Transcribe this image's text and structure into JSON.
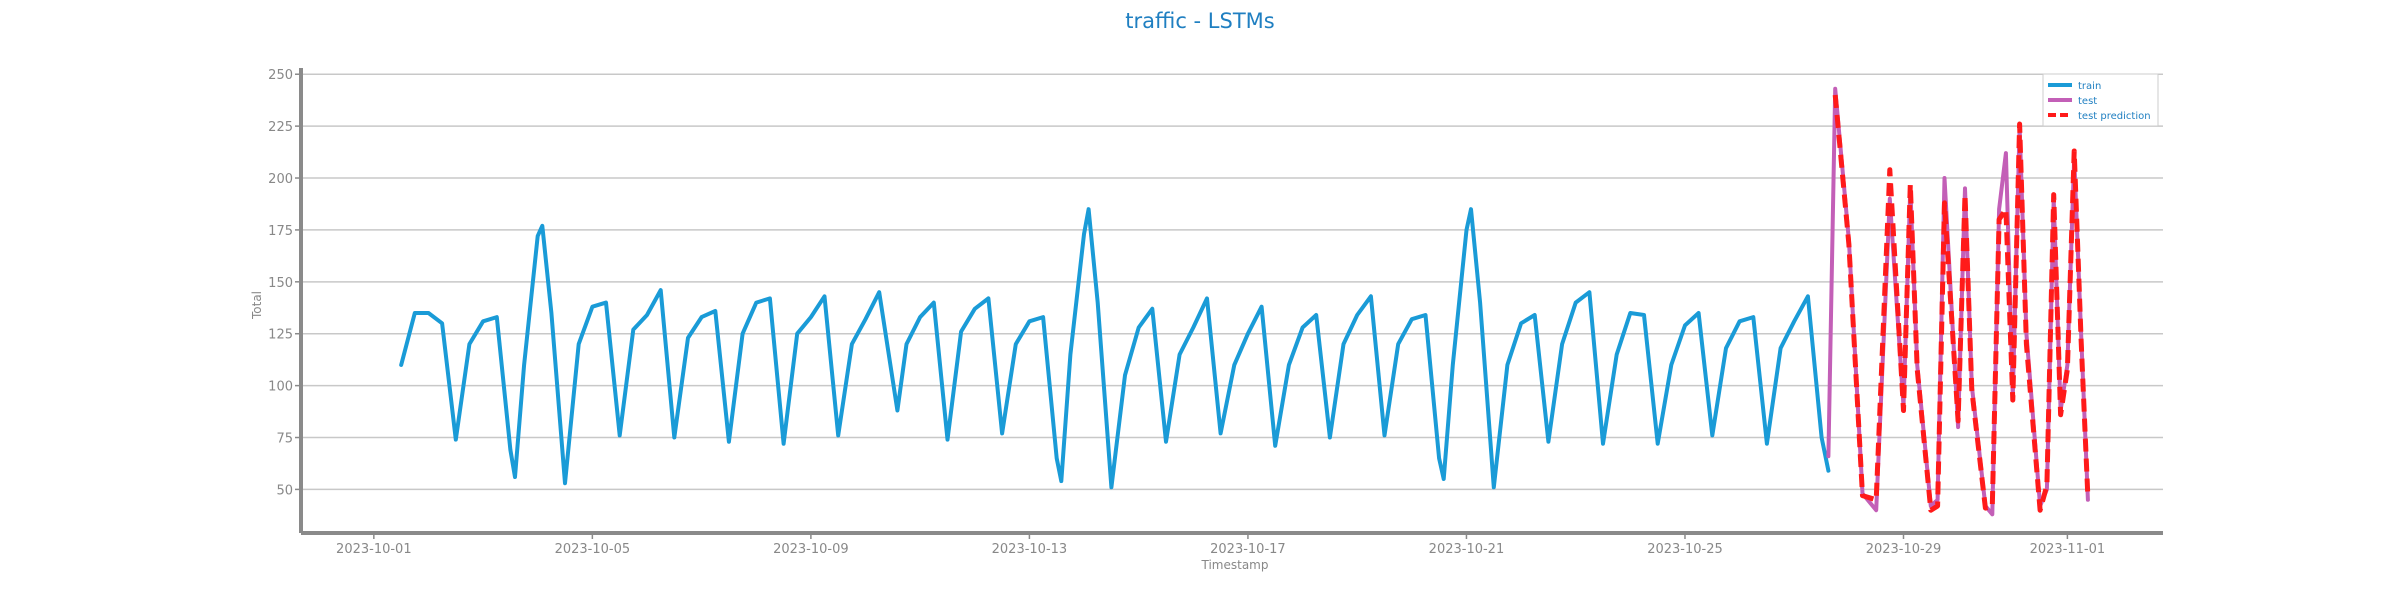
{
  "chart_data": {
    "type": "line",
    "title": "traffic - LSTMs",
    "xlabel": "Timestamp",
    "ylabel": "Total",
    "x_range": [
      "2023-09-29T16:00",
      "2023-11-02T18:00"
    ],
    "ylim": [
      29,
      253
    ],
    "y_ticks": [
      50,
      75,
      100,
      125,
      150,
      175,
      200,
      225,
      250
    ],
    "x_ticks": [
      "2023-10-01",
      "2023-10-05",
      "2023-10-09",
      "2023-10-13",
      "2023-10-17",
      "2023-10-21",
      "2023-10-25",
      "2023-10-29",
      "2023-11-01"
    ],
    "grid": "horizontal",
    "legend_position": "top-right",
    "colors": {
      "train": "#1a9bd7",
      "test": "#c35fb7",
      "test prediction": "#ff1a1a",
      "title": "#1f7fc1",
      "grid": "#c8c8c8",
      "axis": "#8a8a8a"
    },
    "series": [
      {
        "name": "train",
        "style": "solid",
        "points": [
          [
            "2023-10-01T12:00",
            110
          ],
          [
            "2023-10-01T18:00",
            135
          ],
          [
            "2023-10-02T00:00",
            135
          ],
          [
            "2023-10-02T06:00",
            130
          ],
          [
            "2023-10-02T12:00",
            74
          ],
          [
            "2023-10-02T18:00",
            120
          ],
          [
            "2023-10-03T00:00",
            131
          ],
          [
            "2023-10-03T06:00",
            133
          ],
          [
            "2023-10-03T12:00",
            69
          ],
          [
            "2023-10-03T14:00",
            56
          ],
          [
            "2023-10-03T18:00",
            110
          ],
          [
            "2023-10-04T00:00",
            172
          ],
          [
            "2023-10-04T02:00",
            177
          ],
          [
            "2023-10-04T06:00",
            135
          ],
          [
            "2023-10-04T12:00",
            53
          ],
          [
            "2023-10-04T18:00",
            120
          ],
          [
            "2023-10-05T00:00",
            138
          ],
          [
            "2023-10-05T06:00",
            140
          ],
          [
            "2023-10-05T12:00",
            76
          ],
          [
            "2023-10-05T18:00",
            127
          ],
          [
            "2023-10-06T00:00",
            134
          ],
          [
            "2023-10-06T06:00",
            146
          ],
          [
            "2023-10-06T12:00",
            75
          ],
          [
            "2023-10-06T18:00",
            123
          ],
          [
            "2023-10-07T00:00",
            133
          ],
          [
            "2023-10-07T06:00",
            136
          ],
          [
            "2023-10-07T12:00",
            73
          ],
          [
            "2023-10-07T18:00",
            125
          ],
          [
            "2023-10-08T00:00",
            140
          ],
          [
            "2023-10-08T06:00",
            142
          ],
          [
            "2023-10-08T12:00",
            72
          ],
          [
            "2023-10-08T18:00",
            125
          ],
          [
            "2023-10-09T00:00",
            133
          ],
          [
            "2023-10-09T06:00",
            143
          ],
          [
            "2023-10-09T12:00",
            76
          ],
          [
            "2023-10-09T18:00",
            120
          ],
          [
            "2023-10-10T00:00",
            132
          ],
          [
            "2023-10-10T06:00",
            145
          ],
          [
            "2023-10-10T14:00",
            88
          ],
          [
            "2023-10-10T18:00",
            120
          ],
          [
            "2023-10-11T00:00",
            133
          ],
          [
            "2023-10-11T06:00",
            140
          ],
          [
            "2023-10-11T12:00",
            74
          ],
          [
            "2023-10-11T18:00",
            126
          ],
          [
            "2023-10-12T00:00",
            137
          ],
          [
            "2023-10-12T06:00",
            142
          ],
          [
            "2023-10-12T12:00",
            77
          ],
          [
            "2023-10-12T18:00",
            120
          ],
          [
            "2023-10-13T00:00",
            131
          ],
          [
            "2023-10-13T06:00",
            133
          ],
          [
            "2023-10-13T12:00",
            65
          ],
          [
            "2023-10-13T14:00",
            54
          ],
          [
            "2023-10-13T18:00",
            115
          ],
          [
            "2023-10-14T00:00",
            173
          ],
          [
            "2023-10-14T02:00",
            185
          ],
          [
            "2023-10-14T06:00",
            140
          ],
          [
            "2023-10-14T12:00",
            51
          ],
          [
            "2023-10-14T18:00",
            105
          ],
          [
            "2023-10-15T00:00",
            128
          ],
          [
            "2023-10-15T06:00",
            137
          ],
          [
            "2023-10-15T12:00",
            73
          ],
          [
            "2023-10-15T18:00",
            115
          ],
          [
            "2023-10-16T00:00",
            128
          ],
          [
            "2023-10-16T06:00",
            142
          ],
          [
            "2023-10-16T12:00",
            77
          ],
          [
            "2023-10-16T18:00",
            110
          ],
          [
            "2023-10-17T00:00",
            125
          ],
          [
            "2023-10-17T06:00",
            138
          ],
          [
            "2023-10-17T12:00",
            71
          ],
          [
            "2023-10-17T18:00",
            110
          ],
          [
            "2023-10-18T00:00",
            128
          ],
          [
            "2023-10-18T06:00",
            134
          ],
          [
            "2023-10-18T12:00",
            75
          ],
          [
            "2023-10-18T18:00",
            120
          ],
          [
            "2023-10-19T00:00",
            134
          ],
          [
            "2023-10-19T06:00",
            143
          ],
          [
            "2023-10-19T12:00",
            76
          ],
          [
            "2023-10-19T18:00",
            120
          ],
          [
            "2023-10-20T00:00",
            132
          ],
          [
            "2023-10-20T06:00",
            134
          ],
          [
            "2023-10-20T12:00",
            65
          ],
          [
            "2023-10-20T14:00",
            55
          ],
          [
            "2023-10-20T18:00",
            110
          ],
          [
            "2023-10-21T00:00",
            175
          ],
          [
            "2023-10-21T02:00",
            185
          ],
          [
            "2023-10-21T06:00",
            140
          ],
          [
            "2023-10-21T12:00",
            51
          ],
          [
            "2023-10-21T18:00",
            110
          ],
          [
            "2023-10-22T00:00",
            130
          ],
          [
            "2023-10-22T06:00",
            134
          ],
          [
            "2023-10-22T12:00",
            73
          ],
          [
            "2023-10-22T18:00",
            120
          ],
          [
            "2023-10-23T00:00",
            140
          ],
          [
            "2023-10-23T06:00",
            145
          ],
          [
            "2023-10-23T12:00",
            72
          ],
          [
            "2023-10-23T18:00",
            115
          ],
          [
            "2023-10-24T00:00",
            135
          ],
          [
            "2023-10-24T06:00",
            134
          ],
          [
            "2023-10-24T12:00",
            72
          ],
          [
            "2023-10-24T18:00",
            110
          ],
          [
            "2023-10-25T00:00",
            129
          ],
          [
            "2023-10-25T06:00",
            135
          ],
          [
            "2023-10-25T12:00",
            76
          ],
          [
            "2023-10-25T18:00",
            118
          ],
          [
            "2023-10-26T00:00",
            131
          ],
          [
            "2023-10-26T06:00",
            133
          ],
          [
            "2023-10-26T12:00",
            72
          ],
          [
            "2023-10-26T18:00",
            118
          ],
          [
            "2023-10-27T00:00",
            131
          ],
          [
            "2023-10-27T06:00",
            143
          ],
          [
            "2023-10-27T12:00",
            75
          ],
          [
            "2023-10-27T15:00",
            59
          ]
        ]
      },
      {
        "name": "test",
        "style": "solid",
        "points": [
          [
            "2023-10-27T15:00",
            66
          ],
          [
            "2023-10-27T18:00",
            243
          ],
          [
            "2023-10-28T00:00",
            170
          ],
          [
            "2023-10-28T06:00",
            48
          ],
          [
            "2023-10-28T12:00",
            40
          ],
          [
            "2023-10-28T18:00",
            190
          ],
          [
            "2023-10-29T00:00",
            90
          ],
          [
            "2023-10-29T03:00",
            195
          ],
          [
            "2023-10-29T06:00",
            110
          ],
          [
            "2023-10-29T12:00",
            42
          ],
          [
            "2023-10-29T15:00",
            45
          ],
          [
            "2023-10-29T18:00",
            200
          ],
          [
            "2023-10-30T00:00",
            80
          ],
          [
            "2023-10-30T03:00",
            195
          ],
          [
            "2023-10-30T06:00",
            100
          ],
          [
            "2023-10-30T12:00",
            42
          ],
          [
            "2023-10-30T15:00",
            38
          ],
          [
            "2023-10-30T18:00",
            185
          ],
          [
            "2023-10-30T21:00",
            212
          ],
          [
            "2023-10-31T00:00",
            95
          ],
          [
            "2023-10-31T03:00",
            225
          ],
          [
            "2023-10-31T06:00",
            125
          ],
          [
            "2023-10-31T12:00",
            42
          ],
          [
            "2023-10-31T15:00",
            50
          ],
          [
            "2023-10-31T18:00",
            190
          ],
          [
            "2023-10-31T21:00",
            88
          ],
          [
            "2023-11-01T00:00",
            110
          ],
          [
            "2023-11-01T03:00",
            210
          ],
          [
            "2023-11-01T06:00",
            125
          ],
          [
            "2023-11-01T09:00",
            45
          ]
        ]
      },
      {
        "name": "test prediction",
        "style": "dashed",
        "points": [
          [
            "2023-10-27T18:00",
            240
          ],
          [
            "2023-10-28T00:00",
            168
          ],
          [
            "2023-10-28T06:00",
            47
          ],
          [
            "2023-10-28T12:00",
            45
          ],
          [
            "2023-10-28T18:00",
            204
          ],
          [
            "2023-10-29T00:00",
            88
          ],
          [
            "2023-10-29T03:00",
            197
          ],
          [
            "2023-10-29T06:00",
            108
          ],
          [
            "2023-10-29T12:00",
            40
          ],
          [
            "2023-10-29T15:00",
            42
          ],
          [
            "2023-10-29T18:00",
            188
          ],
          [
            "2023-10-30T00:00",
            83
          ],
          [
            "2023-10-30T03:00",
            192
          ],
          [
            "2023-10-30T06:00",
            98
          ],
          [
            "2023-10-30T12:00",
            41
          ],
          [
            "2023-10-30T15:00",
            42
          ],
          [
            "2023-10-30T18:00",
            180
          ],
          [
            "2023-10-30T21:00",
            185
          ],
          [
            "2023-10-31T00:00",
            93
          ],
          [
            "2023-10-31T03:00",
            226
          ],
          [
            "2023-10-31T06:00",
            120
          ],
          [
            "2023-10-31T12:00",
            40
          ],
          [
            "2023-10-31T15:00",
            52
          ],
          [
            "2023-10-31T18:00",
            192
          ],
          [
            "2023-10-31T21:00",
            86
          ],
          [
            "2023-11-01T00:00",
            108
          ],
          [
            "2023-11-01T03:00",
            213
          ],
          [
            "2023-11-01T06:00",
            122
          ],
          [
            "2023-11-01T09:00",
            46
          ]
        ]
      }
    ]
  }
}
